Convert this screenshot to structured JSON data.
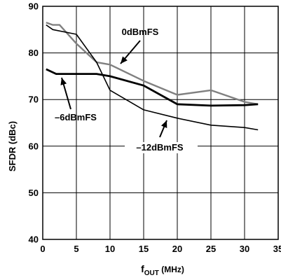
{
  "chart_data": {
    "type": "line",
    "xlabel_main": "f",
    "xlabel_sub": "OUT",
    "xlabel_unit": " (MHz)",
    "ylabel": "SFDR (dBc)",
    "xlim": [
      0,
      35
    ],
    "ylim": [
      40,
      90
    ],
    "xticks": [
      0,
      5,
      10,
      15,
      20,
      25,
      30,
      35
    ],
    "yticks": [
      40,
      50,
      60,
      70,
      80,
      90
    ],
    "grid": true,
    "series": [
      {
        "name": "0dBmFS",
        "color": "#808080",
        "x": [
          0.5,
          1.5,
          2.5,
          5,
          8,
          10,
          15,
          20,
          25,
          30,
          32
        ],
        "y": [
          86.5,
          86,
          86,
          82,
          78,
          77.5,
          74,
          71,
          72,
          69.5,
          69
        ]
      },
      {
        "name": "-6dBmFS",
        "color": "#000000",
        "x": [
          0.5,
          2,
          5,
          8,
          10,
          15,
          20,
          25,
          30,
          32
        ],
        "y": [
          76.5,
          75.5,
          75.5,
          75.5,
          75,
          73,
          69,
          68.7,
          68.8,
          69
        ]
      },
      {
        "name": "-12dBmFS",
        "color": "#000000",
        "x": [
          0.5,
          1.5,
          5,
          8,
          10,
          15,
          20,
          25,
          30,
          32
        ],
        "y": [
          86,
          85,
          84,
          78,
          72,
          67.8,
          66,
          64.5,
          64,
          63.5
        ]
      }
    ],
    "annotations": [
      {
        "text": "0dBmFS",
        "series": 0
      },
      {
        "text": "–6dBmFS",
        "series": 1
      },
      {
        "text": "–12dBmFS",
        "series": 2
      }
    ]
  }
}
